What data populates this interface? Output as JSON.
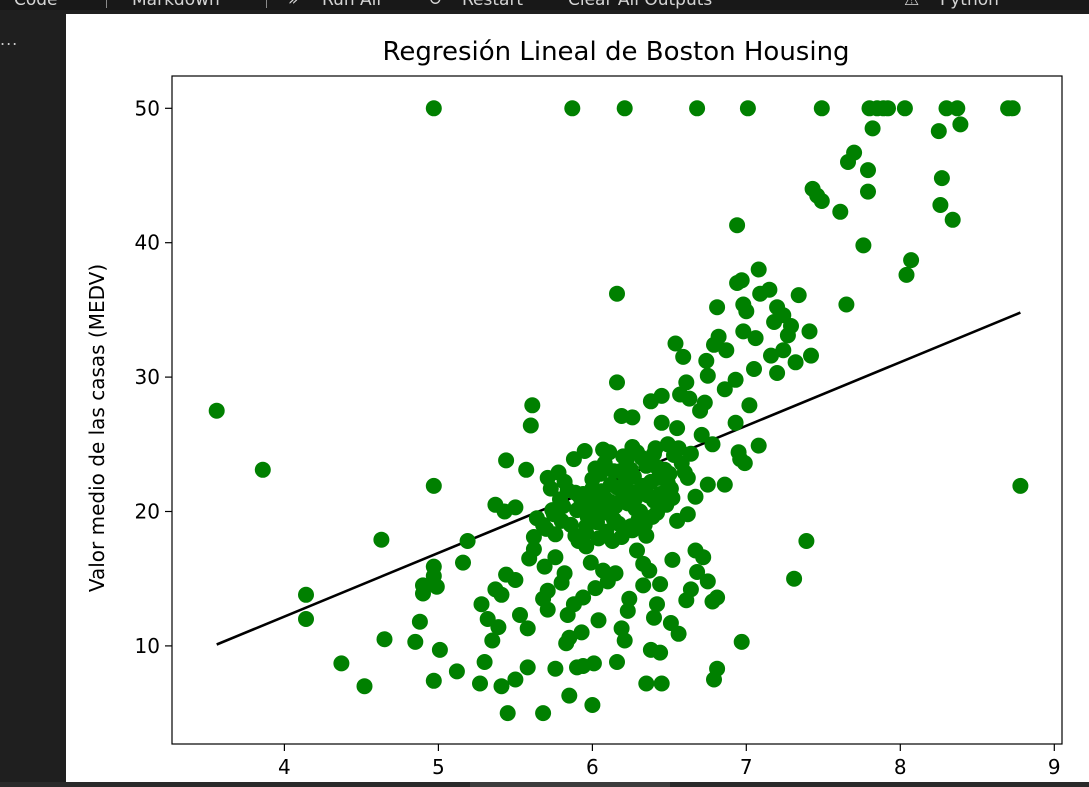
{
  "toolbar": {
    "code_label": "Code",
    "markdown_label": "Markdown",
    "run_all_label": "Run All",
    "restart_label": "Restart",
    "clear_outputs_label": "Clear All Outputs",
    "kernel_label": "Python"
  },
  "cell": {
    "more_label": "..."
  },
  "colors": {
    "points": "#008000",
    "line": "#000000",
    "background": "#ffffff",
    "editor_bg": "#1f1f1f"
  },
  "chart_data": {
    "type": "scatter",
    "title": "Regresión Lineal de Boston Housing",
    "xlabel": "",
    "ylabel": "Valor medio de las casas (MEDV)",
    "xlim": [
      3.27,
      9.05
    ],
    "ylim": [
      2.7,
      52.4
    ],
    "xticks": [
      4,
      5,
      6,
      7,
      8,
      9
    ],
    "yticks": [
      10,
      20,
      30,
      40,
      50
    ],
    "grid": false,
    "series": [
      {
        "kind": "points",
        "color": "#008000",
        "points": [
          [
            4.97,
            50
          ],
          [
            5.87,
            50
          ],
          [
            6.21,
            50
          ],
          [
            6.68,
            50
          ],
          [
            7.01,
            50
          ],
          [
            7.49,
            50
          ],
          [
            7.8,
            50
          ],
          [
            7.85,
            50
          ],
          [
            7.89,
            50
          ],
          [
            7.92,
            50
          ],
          [
            8.03,
            50
          ],
          [
            8.3,
            50
          ],
          [
            8.37,
            50
          ],
          [
            8.7,
            50
          ],
          [
            8.73,
            50
          ],
          [
            7.82,
            48.5
          ],
          [
            8.25,
            48.3
          ],
          [
            8.39,
            48.8
          ],
          [
            7.7,
            46.7
          ],
          [
            7.66,
            46.0
          ],
          [
            7.79,
            45.4
          ],
          [
            8.27,
            44.8
          ],
          [
            7.43,
            44.0
          ],
          [
            7.46,
            43.5
          ],
          [
            7.49,
            43.1
          ],
          [
            7.79,
            43.8
          ],
          [
            8.26,
            42.8
          ],
          [
            8.34,
            41.7
          ],
          [
            7.61,
            42.3
          ],
          [
            6.94,
            41.3
          ],
          [
            7.76,
            39.8
          ],
          [
            8.07,
            38.7
          ],
          [
            8.04,
            37.6
          ],
          [
            7.08,
            38.0
          ],
          [
            6.97,
            37.2
          ],
          [
            6.94,
            37.0
          ],
          [
            7.15,
            36.5
          ],
          [
            7.09,
            36.2
          ],
          [
            6.16,
            36.2
          ],
          [
            7.34,
            36.1
          ],
          [
            7.65,
            35.4
          ],
          [
            7.2,
            35.2
          ],
          [
            6.98,
            35.4
          ],
          [
            6.81,
            35.2
          ],
          [
            7.0,
            34.9
          ],
          [
            7.24,
            34.6
          ],
          [
            7.18,
            34.1
          ],
          [
            7.29,
            33.8
          ],
          [
            6.98,
            33.4
          ],
          [
            7.41,
            33.4
          ],
          [
            7.27,
            33.1
          ],
          [
            7.06,
            32.9
          ],
          [
            6.82,
            33.0
          ],
          [
            6.79,
            32.4
          ],
          [
            6.54,
            32.5
          ],
          [
            6.87,
            32.0
          ],
          [
            7.24,
            32.0
          ],
          [
            7.42,
            31.6
          ],
          [
            7.16,
            31.6
          ],
          [
            7.32,
            31.1
          ],
          [
            6.59,
            31.5
          ],
          [
            6.74,
            31.2
          ],
          [
            7.05,
            30.6
          ],
          [
            6.93,
            29.8
          ],
          [
            6.61,
            29.6
          ],
          [
            6.16,
            29.6
          ],
          [
            6.75,
            30.1
          ],
          [
            7.2,
            30.3
          ],
          [
            6.86,
            29.1
          ],
          [
            6.57,
            28.7
          ],
          [
            6.63,
            28.4
          ],
          [
            6.45,
            28.6
          ],
          [
            6.73,
            28.1
          ],
          [
            6.38,
            28.2
          ],
          [
            7.02,
            27.9
          ],
          [
            6.7,
            27.5
          ],
          [
            5.61,
            27.9
          ],
          [
            3.56,
            27.5
          ],
          [
            6.45,
            26.6
          ],
          [
            6.55,
            26.2
          ],
          [
            6.93,
            26.6
          ],
          [
            6.26,
            27.0
          ],
          [
            6.19,
            27.1
          ],
          [
            5.6,
            26.4
          ],
          [
            6.71,
            25.7
          ],
          [
            6.78,
            25.0
          ],
          [
            6.49,
            25.0
          ],
          [
            7.08,
            24.9
          ],
          [
            6.95,
            24.4
          ],
          [
            6.64,
            24.3
          ],
          [
            6.41,
            24.7
          ],
          [
            6.29,
            24.4
          ],
          [
            6.07,
            24.6
          ],
          [
            5.95,
            24.5
          ],
          [
            6.96,
            23.9
          ],
          [
            6.99,
            23.6
          ],
          [
            6.42,
            23.3
          ],
          [
            6.22,
            23.8
          ],
          [
            5.44,
            23.8
          ],
          [
            3.86,
            23.1
          ],
          [
            5.57,
            23.1
          ],
          [
            5.71,
            22.5
          ],
          [
            5.82,
            22.2
          ],
          [
            6.49,
            22.1
          ],
          [
            6.86,
            22.0
          ],
          [
            6.75,
            22.0
          ],
          [
            6.62,
            22.5
          ],
          [
            6.51,
            21.7
          ],
          [
            6.31,
            21.6
          ],
          [
            6.16,
            21.8
          ],
          [
            6.0,
            21.7
          ],
          [
            5.89,
            21.4
          ],
          [
            4.97,
            21.9
          ],
          [
            8.78,
            21.9
          ],
          [
            6.67,
            21.1
          ],
          [
            6.28,
            21.0
          ],
          [
            6.09,
            20.9
          ],
          [
            5.93,
            20.6
          ],
          [
            5.37,
            20.5
          ],
          [
            5.43,
            20.0
          ],
          [
            5.5,
            20.3
          ],
          [
            5.74,
            20.1
          ],
          [
            6.05,
            20.1
          ],
          [
            6.43,
            20.3
          ],
          [
            6.31,
            20.0
          ],
          [
            6.62,
            19.8
          ],
          [
            5.64,
            19.5
          ],
          [
            5.8,
            19.3
          ],
          [
            6.14,
            19.4
          ],
          [
            6.39,
            19.6
          ],
          [
            6.55,
            19.3
          ],
          [
            5.96,
            18.9
          ],
          [
            6.25,
            18.9
          ],
          [
            5.7,
            18.7
          ],
          [
            5.96,
            18.4
          ],
          [
            6.21,
            18.5
          ],
          [
            5.89,
            18.2
          ],
          [
            6.35,
            18.2
          ],
          [
            5.62,
            18.1
          ],
          [
            6.13,
            17.8
          ],
          [
            4.63,
            17.9
          ],
          [
            7.39,
            17.8
          ],
          [
            5.19,
            17.8
          ],
          [
            5.62,
            17.2
          ],
          [
            5.96,
            17.4
          ],
          [
            6.29,
            17.1
          ],
          [
            6.67,
            17.1
          ],
          [
            6.72,
            16.6
          ],
          [
            5.76,
            16.6
          ],
          [
            5.59,
            16.5
          ],
          [
            5.99,
            16.2
          ],
          [
            6.33,
            16.1
          ],
          [
            6.52,
            16.4
          ],
          [
            5.16,
            16.2
          ],
          [
            5.69,
            15.9
          ],
          [
            4.97,
            15.9
          ],
          [
            6.07,
            15.6
          ],
          [
            6.37,
            15.6
          ],
          [
            5.44,
            15.3
          ],
          [
            4.97,
            15.2
          ],
          [
            5.82,
            15.4
          ],
          [
            6.15,
            15.4
          ],
          [
            6.68,
            15.5
          ],
          [
            5.5,
            14.9
          ],
          [
            5.8,
            14.7
          ],
          [
            6.1,
            14.8
          ],
          [
            6.44,
            14.6
          ],
          [
            6.75,
            14.8
          ],
          [
            4.9,
            14.5
          ],
          [
            4.99,
            14.4
          ],
          [
            5.37,
            14.2
          ],
          [
            5.71,
            14.1
          ],
          [
            6.02,
            14.3
          ],
          [
            6.33,
            14.5
          ],
          [
            6.64,
            14.2
          ],
          [
            7.31,
            15.0
          ],
          [
            4.14,
            13.8
          ],
          [
            4.9,
            13.9
          ],
          [
            5.41,
            13.8
          ],
          [
            5.68,
            13.5
          ],
          [
            5.94,
            13.6
          ],
          [
            6.24,
            13.5
          ],
          [
            6.61,
            13.4
          ],
          [
            6.78,
            13.3
          ],
          [
            6.81,
            13.6
          ],
          [
            5.28,
            13.1
          ],
          [
            5.88,
            13.1
          ],
          [
            6.42,
            13.1
          ],
          [
            5.71,
            12.7
          ],
          [
            6.23,
            12.6
          ],
          [
            5.53,
            12.3
          ],
          [
            5.84,
            12.3
          ],
          [
            6.4,
            12.1
          ],
          [
            4.14,
            12.0
          ],
          [
            5.32,
            12.0
          ],
          [
            6.04,
            11.9
          ],
          [
            6.51,
            11.7
          ],
          [
            4.88,
            11.8
          ],
          [
            5.39,
            11.4
          ],
          [
            5.58,
            11.3
          ],
          [
            6.19,
            11.3
          ],
          [
            5.93,
            11.0
          ],
          [
            6.56,
            10.9
          ],
          [
            6.97,
            10.3
          ],
          [
            5.35,
            10.4
          ],
          [
            5.85,
            10.6
          ],
          [
            6.21,
            10.4
          ],
          [
            4.65,
            10.5
          ],
          [
            4.85,
            10.3
          ],
          [
            5.83,
            10.2
          ],
          [
            5.01,
            9.7
          ],
          [
            6.38,
            9.7
          ],
          [
            6.44,
            9.5
          ],
          [
            5.3,
            8.8
          ],
          [
            5.58,
            8.4
          ],
          [
            5.9,
            8.4
          ],
          [
            5.94,
            8.5
          ],
          [
            6.01,
            8.7
          ],
          [
            6.16,
            8.8
          ],
          [
            4.37,
            8.7
          ],
          [
            5.12,
            8.1
          ],
          [
            5.76,
            8.3
          ],
          [
            6.81,
            8.3
          ],
          [
            5.5,
            7.5
          ],
          [
            4.97,
            7.4
          ],
          [
            5.27,
            7.2
          ],
          [
            6.35,
            7.2
          ],
          [
            6.45,
            7.2
          ],
          [
            6.79,
            7.5
          ],
          [
            4.52,
            7.0
          ],
          [
            5.41,
            7.0
          ],
          [
            5.85,
            6.3
          ],
          [
            6.0,
            5.6
          ],
          [
            5.45,
            5.0
          ],
          [
            5.68,
            5.0
          ],
          [
            5.78,
            22.9
          ],
          [
            5.84,
            21.6
          ],
          [
            5.92,
            21.1
          ],
          [
            6.0,
            22.4
          ],
          [
            6.05,
            22.8
          ],
          [
            6.08,
            23.6
          ],
          [
            6.1,
            19.9
          ],
          [
            6.12,
            22.0
          ],
          [
            6.15,
            20.4
          ],
          [
            6.18,
            23.0
          ],
          [
            6.2,
            21.2
          ],
          [
            6.23,
            20.6
          ],
          [
            6.25,
            23.1
          ],
          [
            6.27,
            22.6
          ],
          [
            6.3,
            19.4
          ],
          [
            6.33,
            21.9
          ],
          [
            6.35,
            23.4
          ],
          [
            6.38,
            22.2
          ],
          [
            6.4,
            20.8
          ],
          [
            6.44,
            21.3
          ],
          [
            6.47,
            23.1
          ],
          [
            6.5,
            22.8
          ],
          [
            6.53,
            24.2
          ],
          [
            6.56,
            24.7
          ],
          [
            6.58,
            23.6
          ],
          [
            6.6,
            22.9
          ],
          [
            5.75,
            19.8
          ],
          [
            5.79,
            20.9
          ],
          [
            5.86,
            19.0
          ],
          [
            5.9,
            20.1
          ],
          [
            5.94,
            21.3
          ],
          [
            5.97,
            19.6
          ],
          [
            6.0,
            20.6
          ],
          [
            6.03,
            19.2
          ],
          [
            6.06,
            21.5
          ],
          [
            6.09,
            18.5
          ],
          [
            6.12,
            20.7
          ],
          [
            6.14,
            23.0
          ],
          [
            6.17,
            19.1
          ],
          [
            6.2,
            24.1
          ],
          [
            6.22,
            22.4
          ],
          [
            6.24,
            21.5
          ],
          [
            6.26,
            24.8
          ],
          [
            6.28,
            20.2
          ],
          [
            6.32,
            24.0
          ],
          [
            6.36,
            21.2
          ],
          [
            6.4,
            24.3
          ],
          [
            6.43,
            22.5
          ],
          [
            5.68,
            19.0
          ],
          [
            5.73,
            21.7
          ],
          [
            5.76,
            18.3
          ],
          [
            5.81,
            20.4
          ],
          [
            5.88,
            23.9
          ],
          [
            5.91,
            17.8
          ],
          [
            6.02,
            23.2
          ],
          [
            6.04,
            18.0
          ],
          [
            6.11,
            24.4
          ],
          [
            6.19,
            18.1
          ],
          [
            6.26,
            18.6
          ],
          [
            6.34,
            19.0
          ],
          [
            6.42,
            19.9
          ],
          [
            6.48,
            20.5
          ],
          [
            6.52,
            21.0
          ]
        ]
      },
      {
        "kind": "line",
        "color": "#000000",
        "points": [
          [
            3.56,
            10.1
          ],
          [
            8.78,
            34.8
          ]
        ]
      }
    ]
  }
}
